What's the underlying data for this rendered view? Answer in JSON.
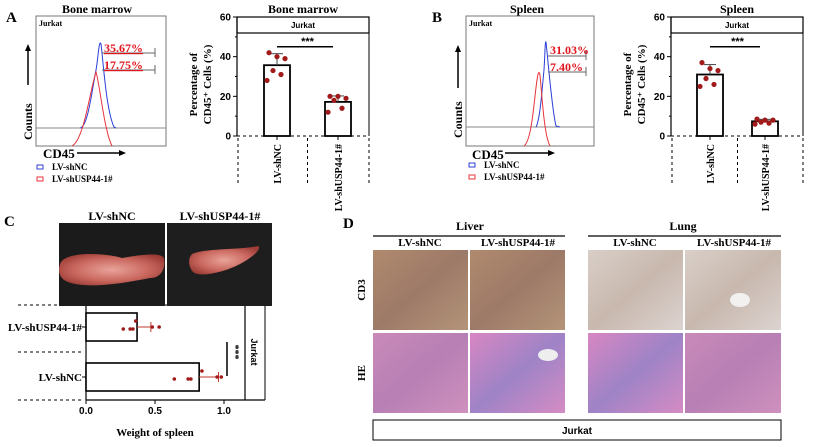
{
  "panels": {
    "A": {
      "letter": "A",
      "hist_title": "Bone marrow",
      "hist_tag": "Jurkat",
      "pct_high": "35.67%",
      "pct_low": "17.75%",
      "y_label": "Counts",
      "x_label": "CD45"
    },
    "B": {
      "letter": "B",
      "hist_title": "Spleen",
      "hist_tag": "Jurkat",
      "pct_high": "31.03%",
      "pct_low": "7.40%",
      "y_label": "Counts",
      "x_label": "CD45"
    },
    "C": {
      "letter": "C",
      "photo_labels": [
        "LV-shNC",
        "LV-shUSP44-1#"
      ]
    },
    "D": {
      "letter": "D",
      "tissues": [
        "Liver",
        "Lung"
      ],
      "columns": [
        "LV-shNC",
        "LV-shUSP44-1#",
        "LV-shNC",
        "LV-shUSP44-1#"
      ],
      "rows": [
        "CD3",
        "HE"
      ],
      "footer": "Jurkat"
    }
  },
  "legend": [
    {
      "label": "LV-shNC",
      "color": "#2b3fd6"
    },
    {
      "label": "LV-shUSP44-1#",
      "color": "#e8343a"
    }
  ],
  "colors": {
    "points": "#a01a1a",
    "pct_text": "#e0141c",
    "shNC_curve": "#2b3fd6",
    "shUSP44_curve": "#e8343a"
  },
  "chart_data": [
    {
      "type": "bar",
      "title": "Bone marrow",
      "tag": "Jurkat",
      "ylabel_1": "Percentage of",
      "ylabel_2": "CD45⁺ Cells (%)",
      "ylim": [
        0,
        60
      ],
      "yticks": [
        "0",
        "20",
        "40",
        "60"
      ],
      "categories": [
        "LV-shNC",
        "LV-shUSP44-1#"
      ],
      "values": [
        35.7,
        17.2
      ],
      "errors": [
        5.8,
        3.0
      ],
      "points": [
        [
          42,
          40,
          39,
          33,
          31,
          28
        ],
        [
          20,
          20,
          19,
          18,
          14,
          12
        ]
      ],
      "significance": "***"
    },
    {
      "type": "bar",
      "title": "Spleen",
      "tag": "Jurkat",
      "ylabel_1": "Percentage of",
      "ylabel_2": "CD45⁺ Cells (%)",
      "ylim": [
        0,
        60
      ],
      "yticks": [
        "0",
        "20",
        "40",
        "60"
      ],
      "categories": [
        "LV-shNC",
        "LV-shUSP44-1#"
      ],
      "values": [
        31.0,
        7.4
      ],
      "errors": [
        5.0,
        1.0
      ],
      "points": [
        [
          37,
          34,
          33,
          29,
          26,
          25
        ],
        [
          8.5,
          8,
          8,
          7,
          6.5,
          6
        ]
      ],
      "significance": "***"
    },
    {
      "type": "bar",
      "orientation": "horizontal",
      "xlabel": "Weight of spleen",
      "tag": "Jurkat",
      "xlim": [
        0,
        1.15
      ],
      "xticks": [
        "0.0",
        "0.5",
        "1.0"
      ],
      "categories": [
        "LV-shUSP44-1#",
        "LV-shNC"
      ],
      "values": [
        0.37,
        0.82
      ],
      "errors": [
        0.1,
        0.14
      ],
      "points": [
        [
          0.53,
          0.48,
          0.36,
          0.34,
          0.32,
          0.27
        ],
        [
          0.98,
          0.95,
          0.84,
          0.76,
          0.74,
          0.64
        ]
      ],
      "significance": "***"
    }
  ]
}
